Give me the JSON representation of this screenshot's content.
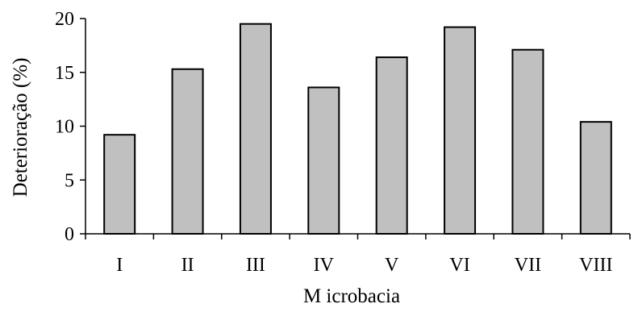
{
  "chart_data": {
    "type": "bar",
    "title": "",
    "xlabel": "M icrobacia",
    "ylabel": "Deterioração (%)",
    "categories": [
      "I",
      "II",
      "III",
      "IV",
      "V",
      "VI",
      "VII",
      "VIII"
    ],
    "values": [
      9.2,
      15.3,
      19.5,
      13.6,
      16.4,
      19.2,
      17.1,
      10.4
    ],
    "ylim": [
      0,
      20
    ],
    "yticks": [
      "0",
      "5",
      "10",
      "15",
      "20"
    ],
    "grid": false,
    "legend": "none",
    "colors": {
      "bar_fill": "#c0c0c0",
      "bar_stroke": "#000000",
      "axis": "#000000"
    }
  }
}
